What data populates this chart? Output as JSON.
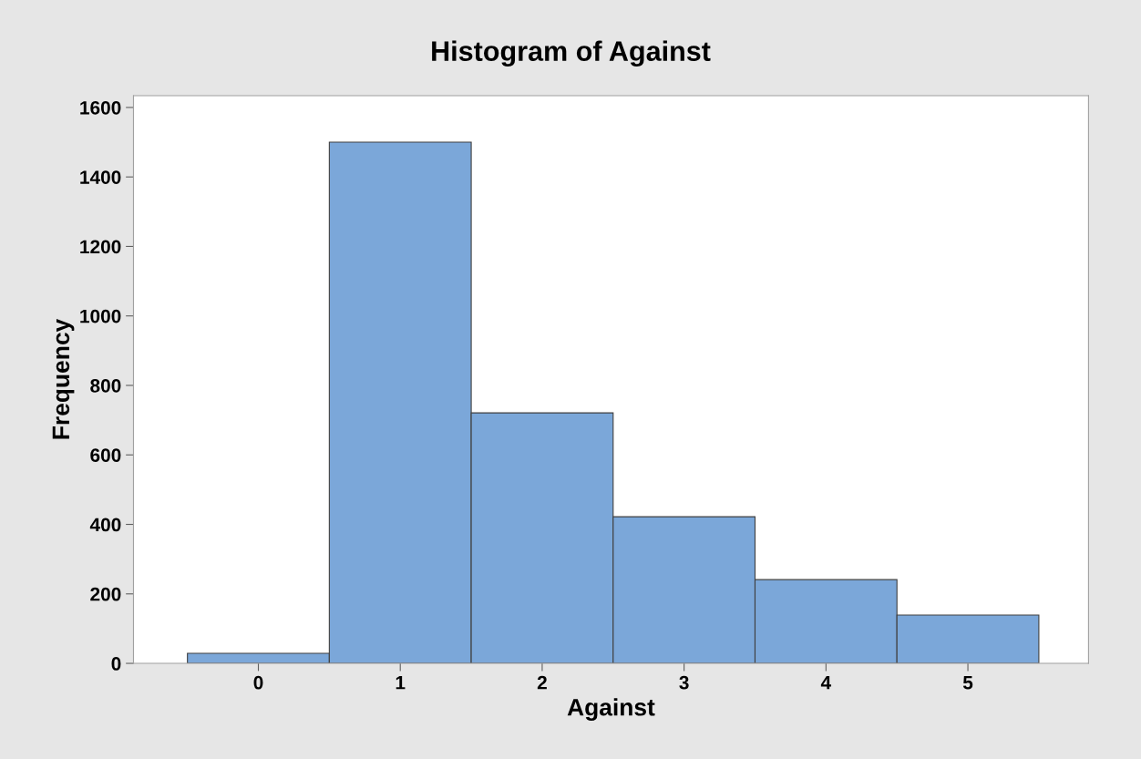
{
  "chart_data": {
    "type": "histogram",
    "title": "Histogram of Against",
    "xlabel": "Against",
    "ylabel": "Frequency",
    "bins": [
      -0.5,
      0.5,
      1.5,
      2.5,
      3.5,
      4.5,
      5.5
    ],
    "values": [
      29,
      1500,
      721,
      422,
      241,
      139
    ],
    "color": "#7ba7d9",
    "xlim": [
      -0.88,
      5.85
    ],
    "xticks": [
      0,
      1,
      2,
      3,
      4,
      5
    ],
    "ylim": [
      0,
      1634
    ],
    "yticks": [
      0,
      200,
      400,
      600,
      800,
      1000,
      1200,
      1400,
      1600
    ],
    "grid": false,
    "legend": false
  }
}
